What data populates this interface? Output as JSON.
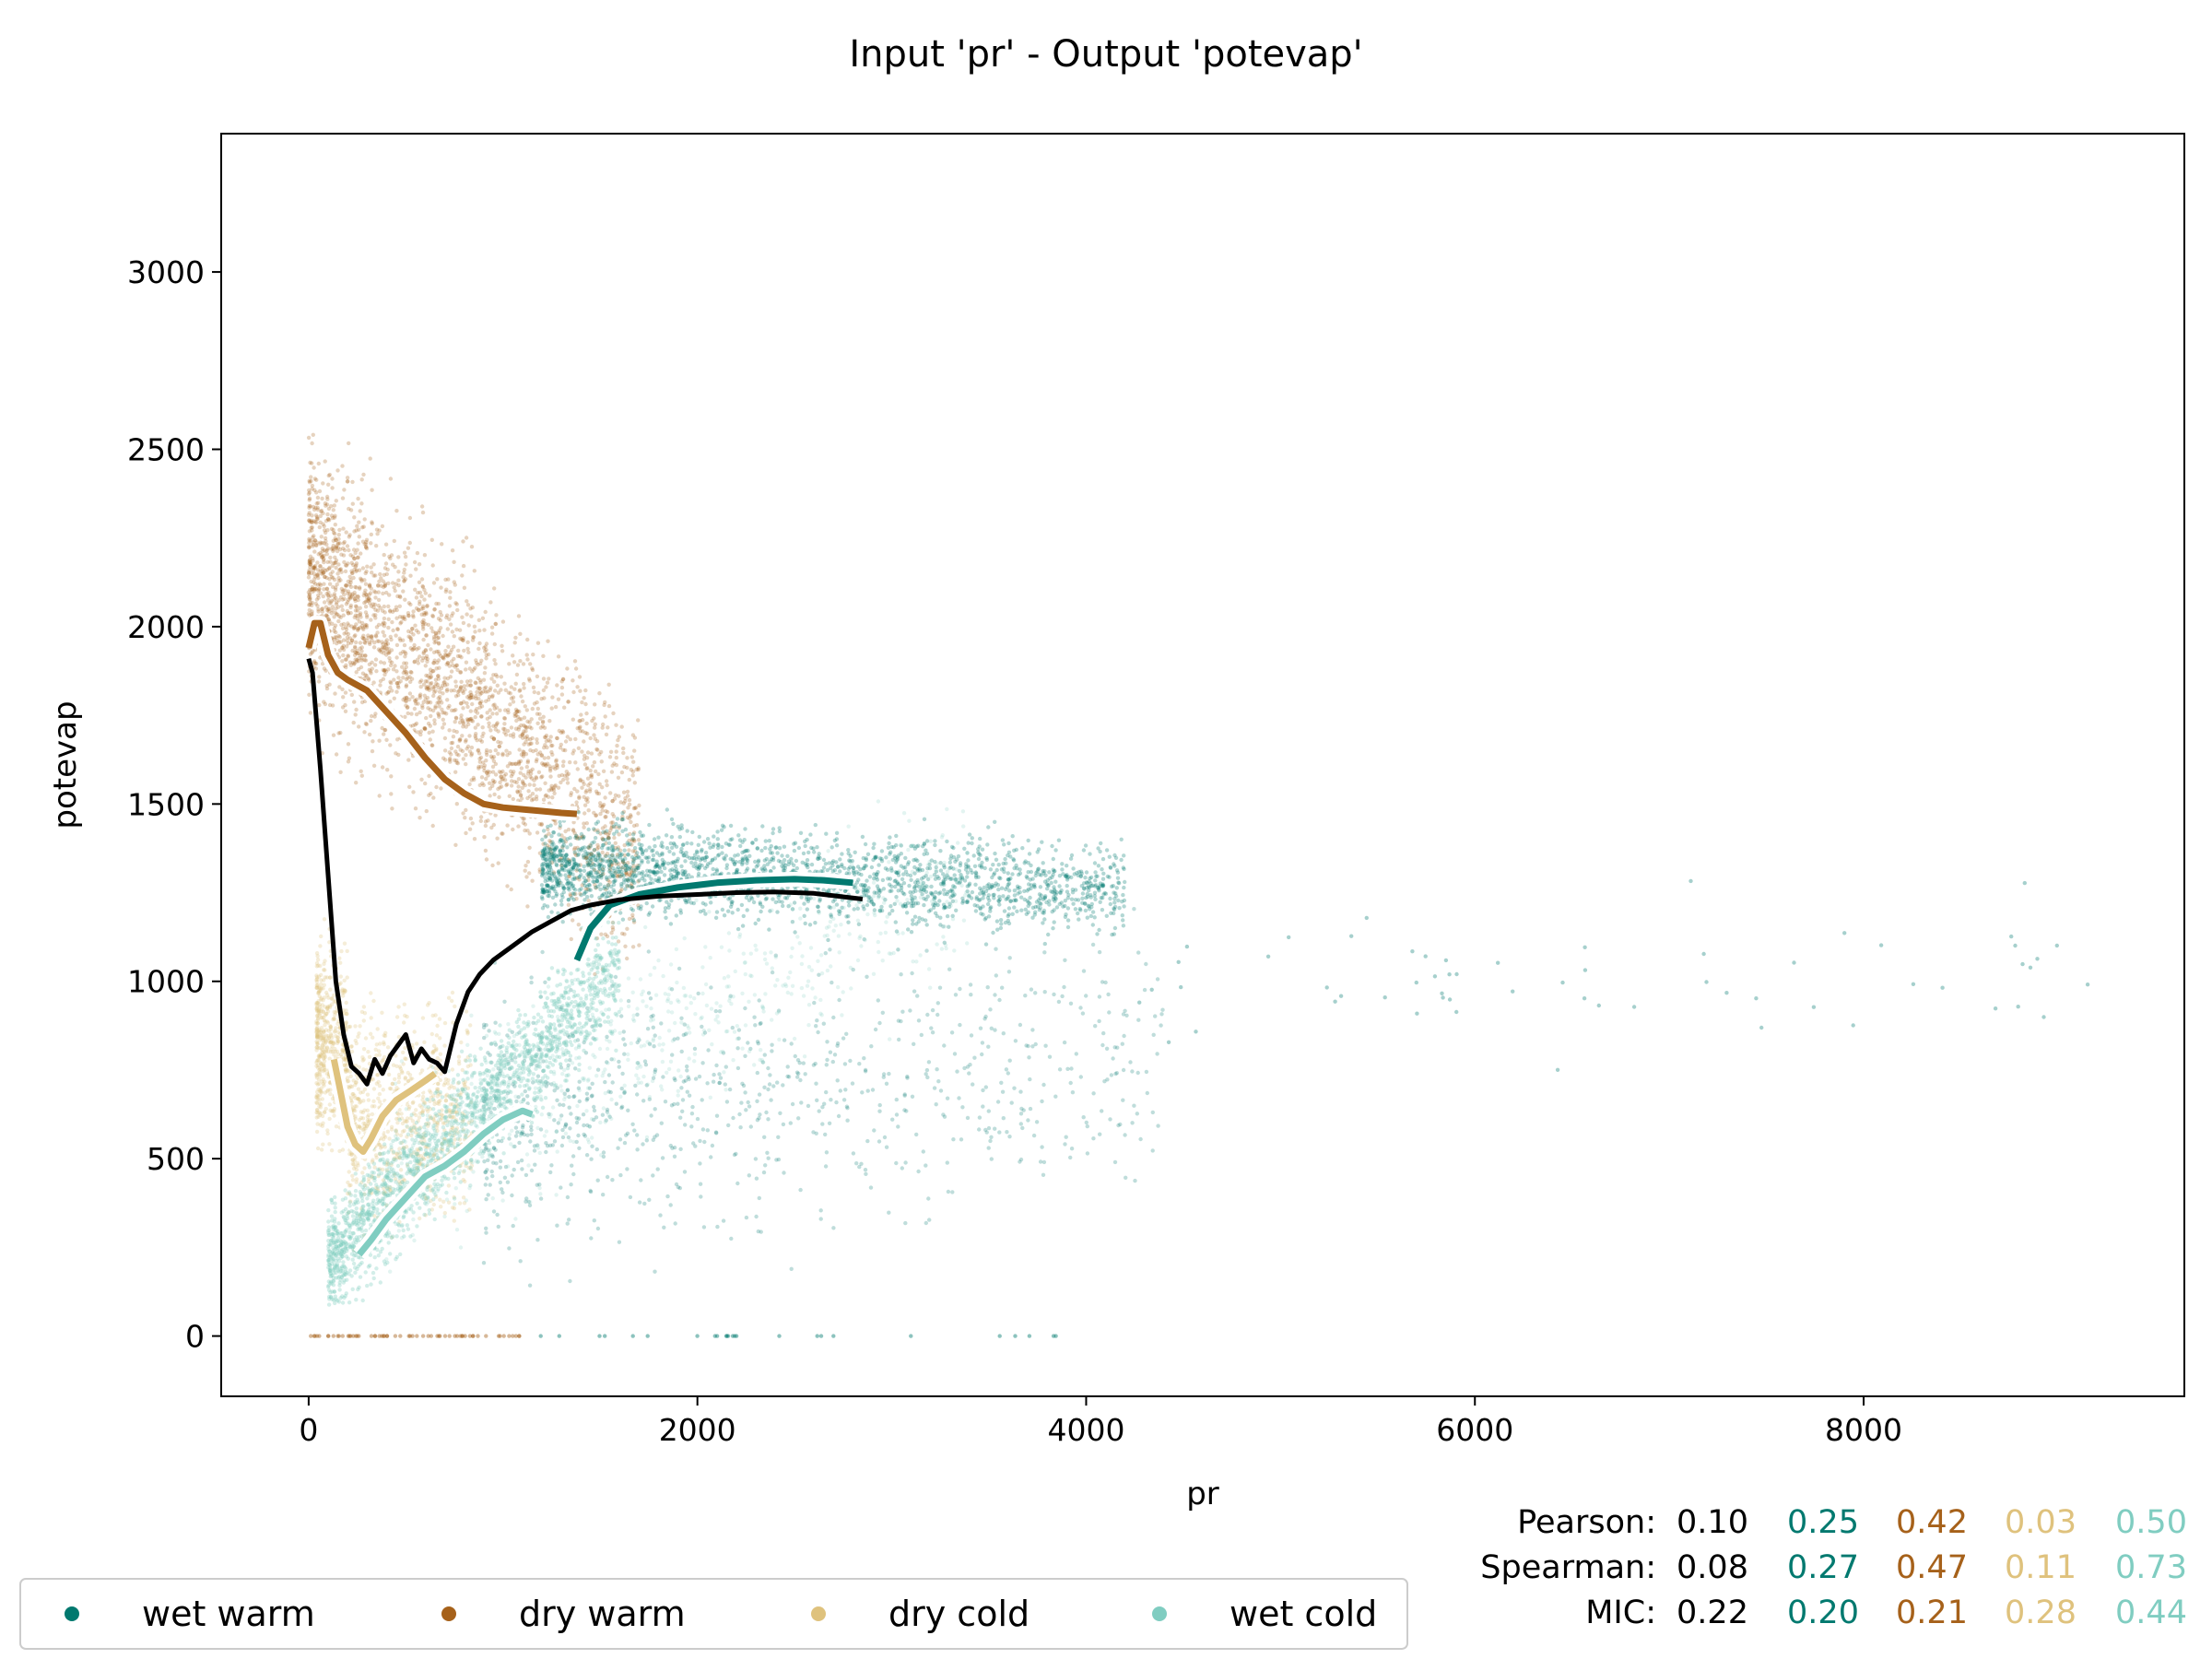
{
  "chart_data": {
    "type": "scatter",
    "title": "Input 'pr' - Output 'potevap'",
    "xlabel": "pr",
    "ylabel": "potevap",
    "xlim": [
      -450,
      9650
    ],
    "ylim": [
      -170,
      3390
    ],
    "xticks": [
      0,
      2000,
      4000,
      6000,
      8000
    ],
    "yticks": [
      0,
      500,
      1000,
      1500,
      2000,
      2500,
      3000
    ],
    "grid": false,
    "legend_position": "bottom-left",
    "colors": {
      "overall": "#000000",
      "wet_warm": "#01796f",
      "dry_warm": "#a6611a",
      "dry_cold": "#dfc27d",
      "wet_cold": "#80cdc1"
    },
    "series": [
      {
        "name": "wet warm",
        "color": "#01796f",
        "trend": {
          "x": [
            1380,
            1450,
            1550,
            1700,
            1900,
            2100,
            2300,
            2500,
            2650,
            2800
          ],
          "y": [
            1060,
            1150,
            1215,
            1245,
            1265,
            1278,
            1285,
            1288,
            1285,
            1278
          ]
        }
      },
      {
        "name": "dry warm",
        "color": "#a6611a",
        "trend": {
          "x": [
            0,
            30,
            60,
            100,
            150,
            200,
            300,
            400,
            500,
            600,
            700,
            800,
            900,
            1000,
            1100,
            1200,
            1300,
            1380
          ],
          "y": [
            1940,
            2010,
            2010,
            1920,
            1870,
            1850,
            1820,
            1760,
            1700,
            1630,
            1570,
            1530,
            1500,
            1490,
            1485,
            1480,
            1475,
            1472
          ]
        }
      },
      {
        "name": "dry cold",
        "color": "#dfc27d",
        "trend": {
          "x": [
            130,
            160,
            200,
            240,
            280,
            320,
            380,
            450,
            520,
            600,
            650
          ],
          "y": [
            780,
            700,
            590,
            540,
            520,
            555,
            620,
            665,
            690,
            720,
            740
          ]
        }
      },
      {
        "name": "wet cold",
        "color": "#80cdc1",
        "trend": {
          "x": [
            260,
            320,
            400,
            500,
            600,
            700,
            800,
            900,
            1000,
            1100,
            1150
          ],
          "y": [
            230,
            270,
            330,
            390,
            450,
            480,
            520,
            570,
            610,
            635,
            625
          ]
        }
      }
    ],
    "overall_trend": {
      "x": [
        0,
        20,
        60,
        100,
        140,
        180,
        220,
        260,
        300,
        340,
        380,
        420,
        460,
        500,
        540,
        580,
        620,
        660,
        700,
        760,
        820,
        880,
        950,
        1050,
        1150,
        1250,
        1350,
        1450,
        1600,
        1800,
        2000,
        2200,
        2400,
        2600,
        2850
      ],
      "y": [
        1910,
        1870,
        1600,
        1300,
        1000,
        850,
        760,
        740,
        710,
        780,
        740,
        790,
        820,
        850,
        770,
        810,
        780,
        770,
        745,
        880,
        970,
        1020,
        1060,
        1100,
        1140,
        1170,
        1200,
        1215,
        1230,
        1240,
        1245,
        1250,
        1252,
        1248,
        1232
      ]
    },
    "stats": {
      "labels": [
        "Pearson:",
        "Spearman:",
        "MIC:"
      ],
      "headers": [
        "overall",
        "wet warm",
        "dry warm",
        "dry cold",
        "wet cold"
      ],
      "rows": [
        [
          "0.10",
          "0.25",
          "0.42",
          "0.03",
          "0.50"
        ],
        [
          "0.08",
          "0.27",
          "0.47",
          "0.11",
          "0.73"
        ],
        [
          "0.22",
          "0.20",
          "0.21",
          "0.28",
          "0.44"
        ]
      ]
    }
  }
}
